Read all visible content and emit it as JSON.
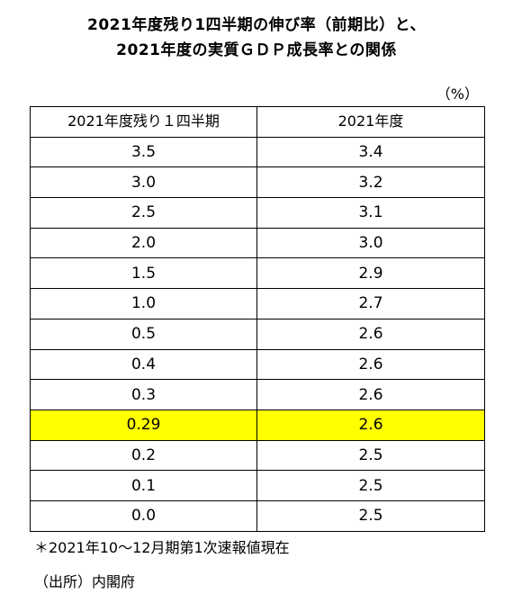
{
  "title": {
    "line1": "2021年度残り1四半期の伸び率（前期比）と、",
    "line2": "2021年度の実質ＧＤＰ成長率との関係"
  },
  "unit": "（%）",
  "table": {
    "headers": [
      "2021年度残り１四半期",
      "2021年度"
    ],
    "rows": [
      [
        "3.5",
        "3.4"
      ],
      [
        "3.0",
        "3.2"
      ],
      [
        "2.5",
        "3.1"
      ],
      [
        "2.0",
        "3.0"
      ],
      [
        "1.5",
        "2.9"
      ],
      [
        "1.0",
        "2.7"
      ],
      [
        "0.5",
        "2.6"
      ],
      [
        "0.4",
        "2.6"
      ],
      [
        "0.3",
        "2.6"
      ],
      [
        "0.29",
        "2.6"
      ],
      [
        "0.2",
        "2.5"
      ],
      [
        "0.1",
        "2.5"
      ],
      [
        "0.0",
        "2.5"
      ]
    ],
    "highlight_row_index": 9,
    "highlight_color": "#ffff00"
  },
  "notes": {
    "note1": "＊2021年10～12月期第1次速報値現在",
    "source": "（出所）内閣府"
  }
}
